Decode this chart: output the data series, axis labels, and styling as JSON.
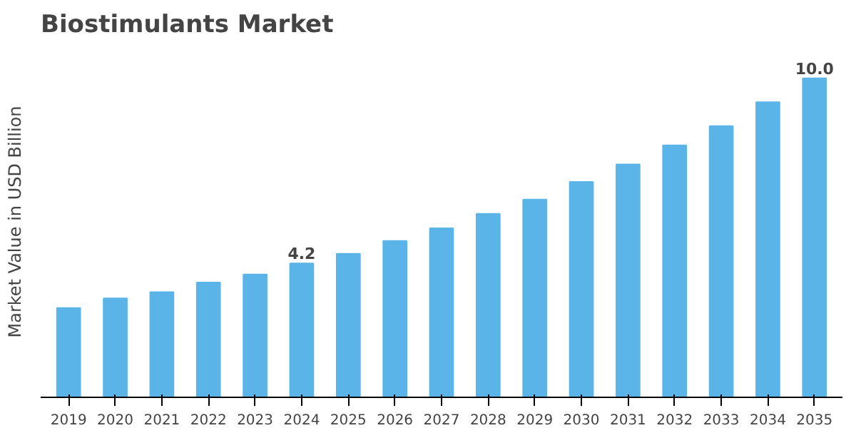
{
  "chart_data": {
    "type": "bar",
    "title": "Biostimulants Market",
    "ylabel": "Market Value in USD Billion",
    "categories": [
      "2019",
      "2020",
      "2021",
      "2022",
      "2023",
      "2024",
      "2025",
      "2026",
      "2027",
      "2028",
      "2029",
      "2030",
      "2031",
      "2032",
      "2033",
      "2034",
      "2035"
    ],
    "values": [
      2.8,
      3.1,
      3.3,
      3.6,
      3.85,
      4.2,
      4.5,
      4.9,
      5.3,
      5.75,
      6.2,
      6.75,
      7.3,
      7.9,
      8.5,
      9.25,
      10.0
    ],
    "value_labels": [
      null,
      null,
      null,
      null,
      null,
      "4.2",
      null,
      null,
      null,
      null,
      null,
      null,
      null,
      null,
      null,
      null,
      "10.0"
    ],
    "color": "#5ab4e8",
    "grid": false
  }
}
